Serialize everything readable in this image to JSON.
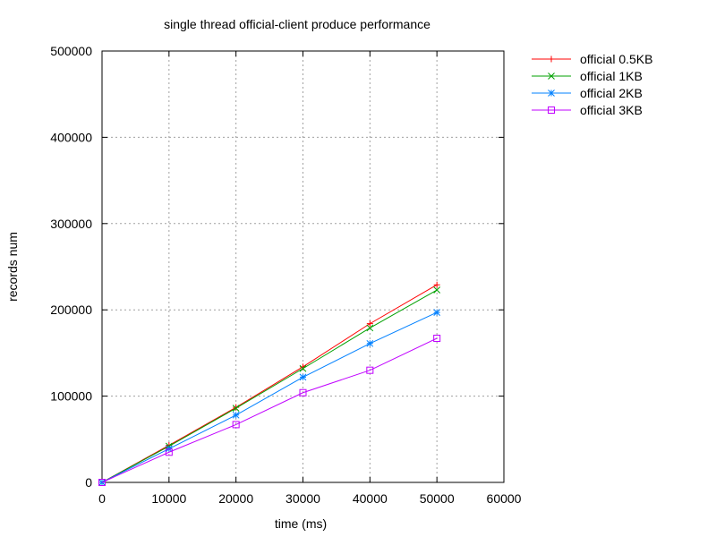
{
  "chart_data": {
    "type": "line",
    "title": "single thread official-client produce performance",
    "xlabel": "time (ms)",
    "ylabel": "records num",
    "xlim": [
      0,
      60000
    ],
    "ylim": [
      0,
      500000
    ],
    "xticks": [
      0,
      10000,
      20000,
      30000,
      40000,
      50000,
      60000
    ],
    "yticks": [
      0,
      100000,
      200000,
      300000,
      400000,
      500000
    ],
    "grid": true,
    "legend_position": "outside-top-right",
    "x": [
      0,
      10000,
      20000,
      30000,
      40000,
      50000
    ],
    "series": [
      {
        "name": "official 0.5KB",
        "color": "#ff0000",
        "marker": "plus",
        "values": [
          0,
          43000,
          87000,
          134000,
          184000,
          229000
        ]
      },
      {
        "name": "official 1KB",
        "color": "#00a000",
        "marker": "cross",
        "values": [
          0,
          42000,
          86000,
          132000,
          179000,
          223000
        ]
      },
      {
        "name": "official 2KB",
        "color": "#0080ff",
        "marker": "asterisk",
        "values": [
          0,
          39000,
          78000,
          122000,
          161000,
          197000
        ]
      },
      {
        "name": "official 3KB",
        "color": "#c000ff",
        "marker": "square",
        "values": [
          0,
          35000,
          67000,
          104000,
          130000,
          167000
        ]
      }
    ]
  }
}
